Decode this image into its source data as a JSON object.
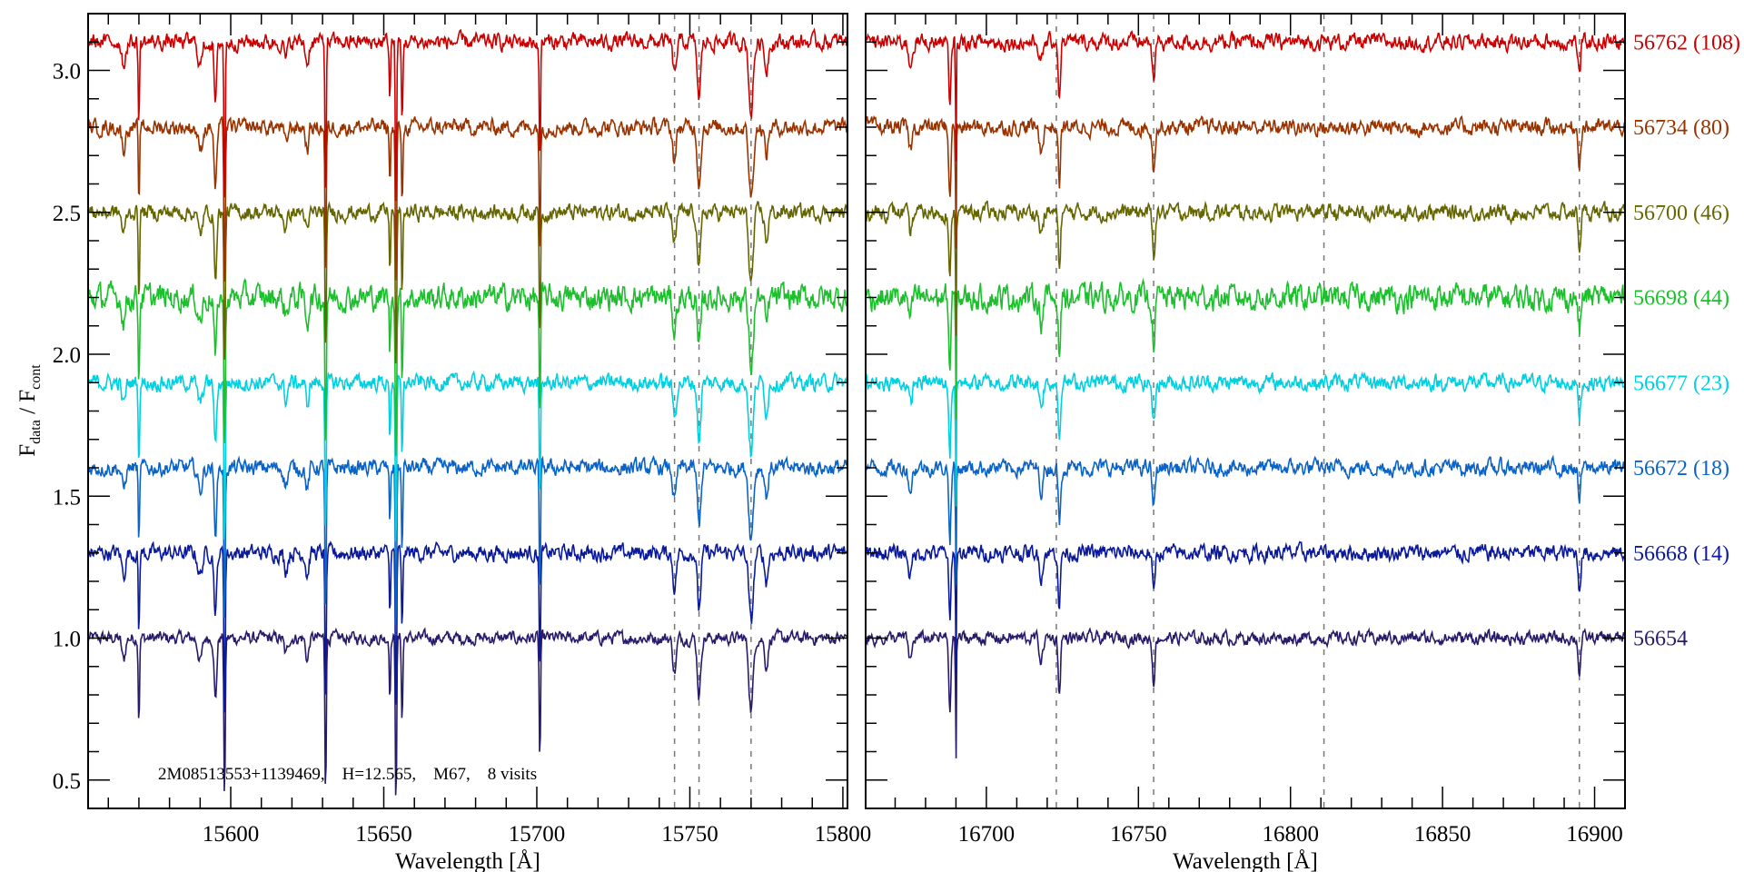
{
  "chart_data": {
    "type": "line",
    "ylabel_main": "F",
    "ylabel_sub1": "data",
    "ylabel_sep": " / F",
    "ylabel_sub2": "cont",
    "ylim": [
      0.4,
      3.2
    ],
    "yticks": [
      0.5,
      1.0,
      1.5,
      2.0,
      2.5,
      3.0
    ],
    "ytick_labels": [
      "0.5",
      "1.0",
      "1.5",
      "2.0",
      "2.5",
      "3.0"
    ],
    "annotation": "2M08513553+1139469,    H=12.565,    M67,    8 visits",
    "panels": [
      {
        "xlabel": "Wavelength [Å]",
        "xlim": [
          15553.4,
          15801.5
        ],
        "xticks": [
          15600,
          15650,
          15700,
          15750,
          15800
        ],
        "xtick_labels": [
          "15600",
          "15650",
          "15700",
          "15750",
          "15800"
        ],
        "dashed_lines": [
          15745,
          15753,
          15770
        ],
        "absorption_lines": [
          [
            15570,
            0.3,
            0.3
          ],
          [
            15590,
            0.08,
            1.0
          ],
          [
            15595,
            0.22,
            0.6
          ],
          [
            15598,
            0.6,
            0.3
          ],
          [
            15618,
            0.06,
            0.8
          ],
          [
            15625,
            0.08,
            0.7
          ],
          [
            15631,
            0.55,
            0.3
          ],
          [
            15652,
            0.2,
            0.3
          ],
          [
            15654,
            0.6,
            0.3
          ],
          [
            15656,
            0.3,
            0.3
          ],
          [
            15701,
            0.45,
            0.3
          ],
          [
            15745,
            0.12,
            0.8
          ],
          [
            15753,
            0.2,
            0.8
          ],
          [
            15770,
            0.25,
            1.0
          ],
          [
            15775,
            0.1,
            0.8
          ],
          [
            15565,
            0.08,
            0.8
          ]
        ]
      },
      {
        "xlabel": "Wavelength [Å]",
        "xlim": [
          16660.3,
          16910
        ],
        "xticks": [
          16700,
          16750,
          16800,
          16850,
          16900
        ],
        "xtick_labels": [
          "16700",
          "16750",
          "16800",
          "16850",
          "16900"
        ],
        "dashed_lines": [
          16723,
          16755,
          16811,
          16895
        ],
        "absorption_lines": [
          [
            16688,
            0.25,
            0.5
          ],
          [
            16690,
            0.45,
            0.2
          ],
          [
            16718,
            0.08,
            0.8
          ],
          [
            16724,
            0.2,
            0.5
          ],
          [
            16755,
            0.15,
            0.6
          ],
          [
            16895,
            0.12,
            0.6
          ],
          [
            16675,
            0.08,
            0.8
          ]
        ]
      }
    ],
    "series": [
      {
        "name": "56762 (108)",
        "offset": 2.1,
        "color": "#cc0000",
        "noise": 0.025
      },
      {
        "name": "56734 (80)",
        "offset": 1.8,
        "color": "#993300",
        "noise": 0.025
      },
      {
        "name": "56700 (46)",
        "offset": 1.5,
        "color": "#666600",
        "noise": 0.025
      },
      {
        "name": "56698 (44)",
        "offset": 1.2,
        "color": "#1cbf2c",
        "noise": 0.04
      },
      {
        "name": "56677 (23)",
        "offset": 0.9,
        "color": "#00d0e0",
        "noise": 0.025
      },
      {
        "name": "56672 (18)",
        "offset": 0.6,
        "color": "#0a64c8",
        "noise": 0.025
      },
      {
        "name": "56668 (14)",
        "offset": 0.3,
        "color": "#0a1a9a",
        "noise": 0.025
      },
      {
        "name": "56654",
        "offset": 0.0,
        "color": "#2a1a6a",
        "noise": 0.02
      }
    ]
  }
}
